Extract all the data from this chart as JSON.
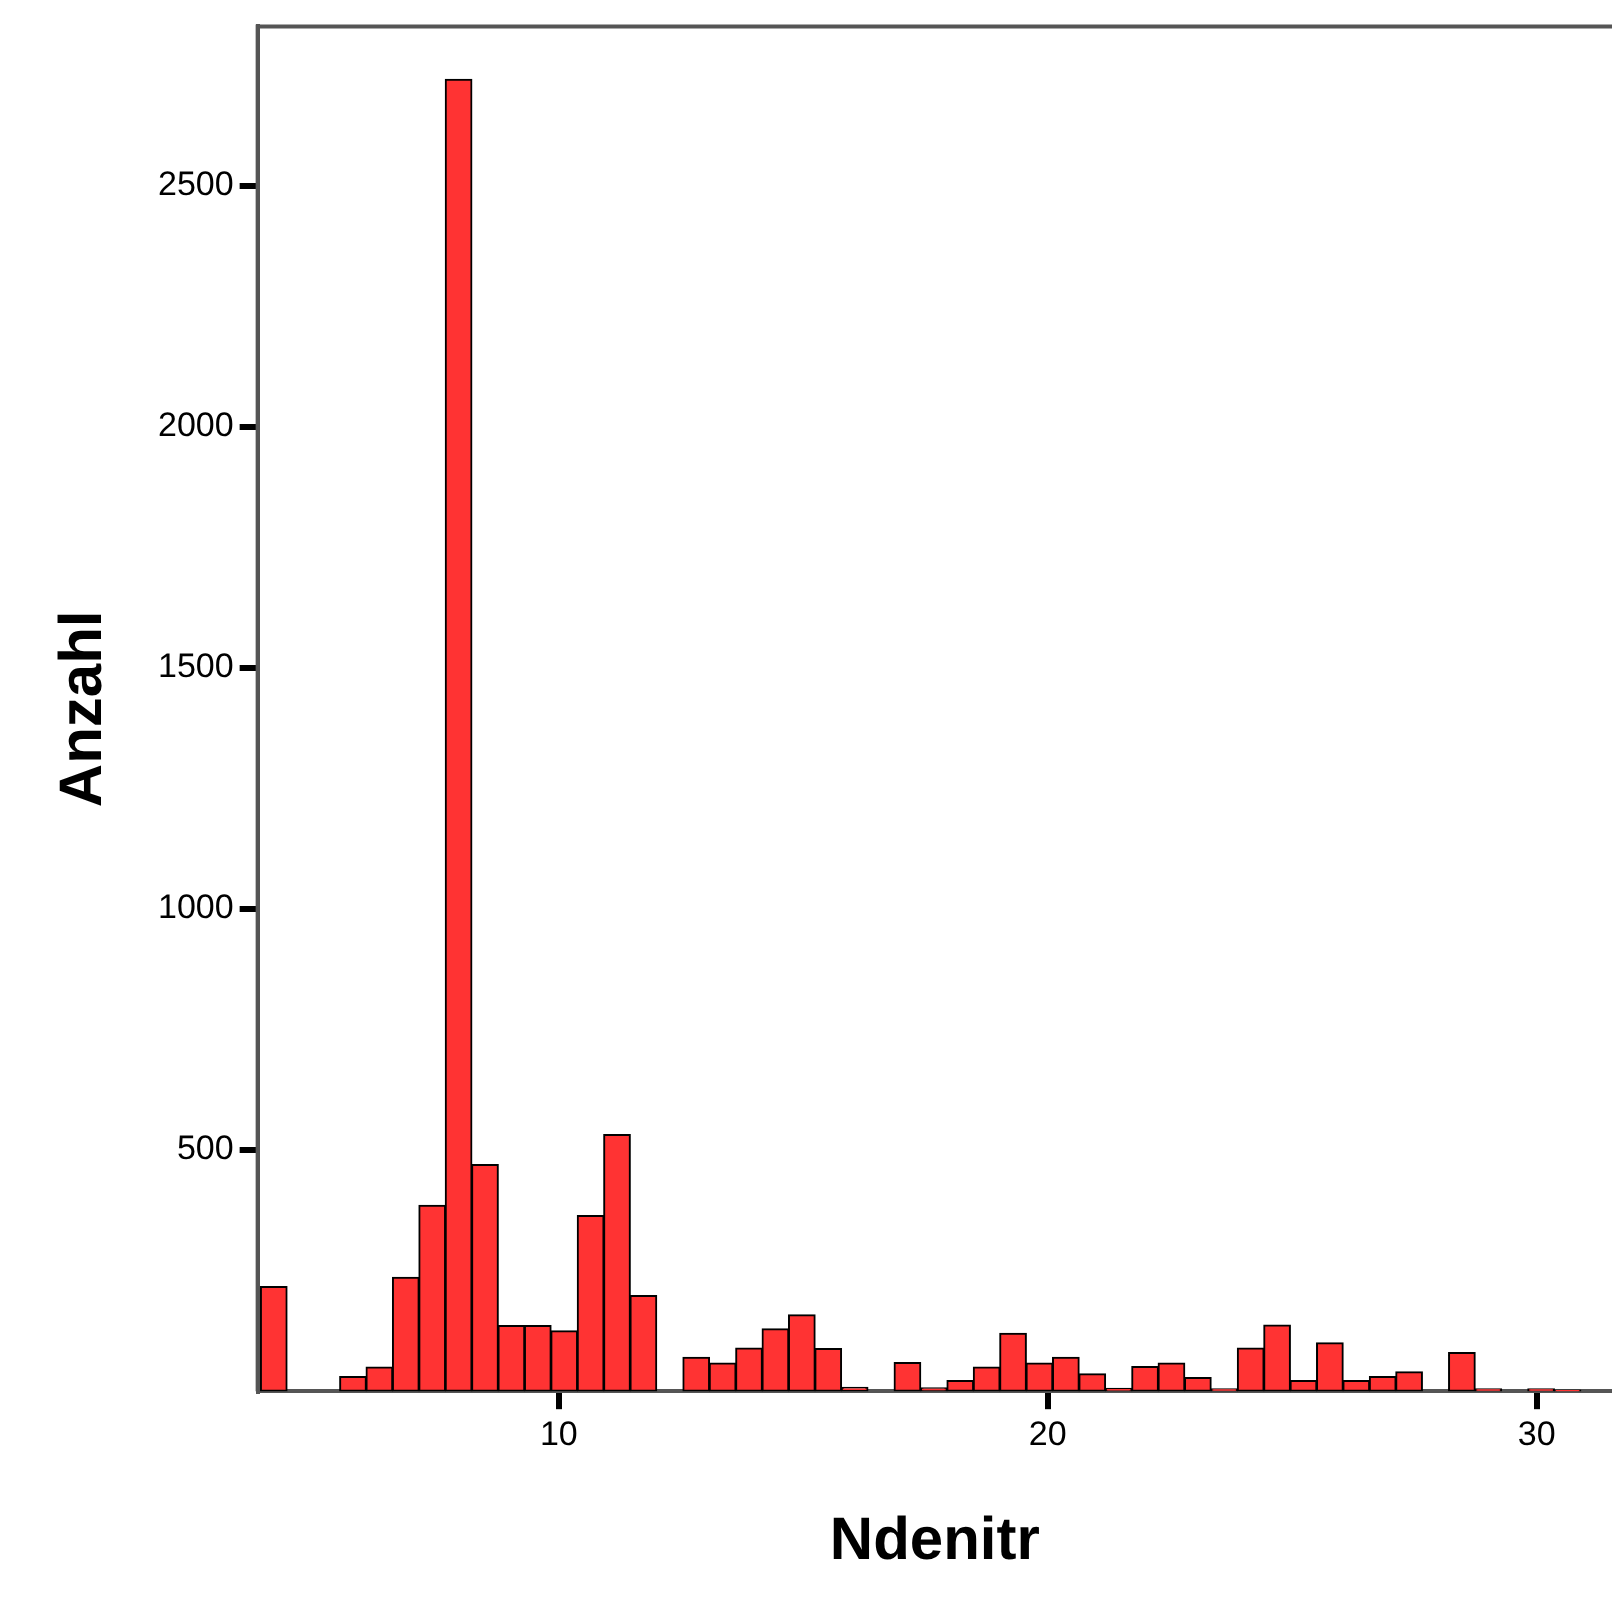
{
  "chart_data": {
    "type": "histogram",
    "xlabel": "Ndenitr",
    "ylabel": "Anzahl",
    "color": "#ff3333",
    "bins": [
      3.9,
      4.44,
      4.98,
      5.52,
      6.06,
      6.6,
      7.14,
      7.68,
      8.22,
      8.76,
      9.3,
      9.84,
      10.38,
      10.92,
      11.46,
      12.0,
      12.54,
      13.08,
      13.62,
      14.16,
      14.7,
      15.24,
      15.78,
      16.32,
      16.86,
      17.4,
      17.94,
      18.48,
      19.02,
      19.56,
      20.1,
      20.64,
      21.18,
      21.72,
      22.26,
      22.8,
      23.34,
      23.88,
      24.42,
      24.96,
      25.5,
      26.04,
      26.58,
      27.12,
      27.66,
      28.2,
      28.74,
      29.28,
      29.82,
      30.36,
      30.9,
      31.44
    ],
    "values": [
      217,
      0,
      0,
      30,
      50,
      236,
      385,
      2720,
      470,
      136,
      136,
      125,
      364,
      532,
      198,
      0,
      70,
      58,
      89,
      129,
      158,
      88,
      8,
      0,
      59,
      7,
      22,
      50,
      120,
      58,
      70,
      36,
      6,
      51,
      58,
      28,
      5,
      89,
      137,
      22,
      100,
      22,
      30,
      40,
      0,
      80,
      5,
      0,
      5,
      2,
      0
    ],
    "xlim": [
      3.84,
      31.54
    ],
    "xticks": [
      10,
      20,
      30
    ],
    "ylim": [
      0,
      2830
    ],
    "yticks": [
      500,
      1000,
      1500,
      2000,
      2500
    ]
  }
}
